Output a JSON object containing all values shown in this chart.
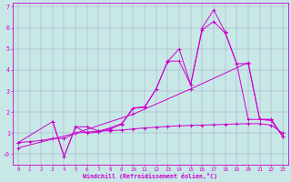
{
  "background_color": "#c8e8e8",
  "grid_color": "#b0b8d0",
  "line_color": "#cc00cc",
  "xlabel": "Windchill (Refroidissement éolien,°C)",
  "xlim": [
    -0.5,
    23.5
  ],
  "ylim": [
    -0.5,
    7.2
  ],
  "xticks": [
    0,
    1,
    2,
    3,
    4,
    5,
    6,
    7,
    8,
    9,
    10,
    11,
    12,
    13,
    14,
    15,
    16,
    17,
    18,
    19,
    20,
    21,
    22,
    23
  ],
  "yticks": [
    0,
    1,
    2,
    3,
    4,
    5,
    6,
    7
  ],
  "ytick_labels": [
    "-0",
    "1",
    "2",
    "3",
    "4",
    "5",
    "6",
    "7"
  ],
  "series1_x": [
    0,
    1,
    2,
    3,
    4,
    5,
    6,
    7,
    8,
    9,
    10,
    11,
    12,
    13,
    14,
    15,
    16,
    17,
    18,
    19,
    20,
    21,
    22,
    23
  ],
  "series1_y": [
    0.55,
    0.6,
    0.65,
    0.75,
    0.75,
    1.0,
    1.05,
    1.1,
    1.12,
    1.15,
    1.2,
    1.25,
    1.28,
    1.32,
    1.35,
    1.37,
    1.38,
    1.4,
    1.42,
    1.44,
    1.45,
    1.45,
    1.38,
    1.0
  ],
  "series2_x": [
    0,
    3,
    4,
    5,
    6,
    7,
    8,
    9,
    10,
    11,
    12,
    13,
    14,
    15,
    16,
    17,
    18,
    19,
    20,
    21,
    22,
    23
  ],
  "series2_y": [
    0.55,
    1.55,
    -0.1,
    1.3,
    1.3,
    1.1,
    1.25,
    1.45,
    2.2,
    2.25,
    3.1,
    4.4,
    5.0,
    3.3,
    6.0,
    6.85,
    5.8,
    4.3,
    4.3,
    1.65,
    1.65,
    0.85
  ],
  "series3_x": [
    3,
    4,
    5,
    6,
    7,
    8,
    9,
    10,
    11,
    12,
    13,
    14,
    15,
    16,
    17,
    18,
    19,
    20,
    21,
    22,
    23
  ],
  "series3_y": [
    1.55,
    -0.1,
    1.3,
    1.0,
    1.05,
    1.2,
    1.42,
    2.18,
    2.22,
    3.1,
    4.42,
    4.42,
    3.3,
    5.9,
    6.3,
    5.75,
    4.3,
    1.65,
    1.65,
    1.65,
    0.85
  ],
  "series4_x": [
    0,
    5,
    10,
    15,
    20,
    21,
    22,
    23
  ],
  "series4_y": [
    0.3,
    1.0,
    1.9,
    3.1,
    4.35,
    1.65,
    1.6,
    0.85
  ]
}
